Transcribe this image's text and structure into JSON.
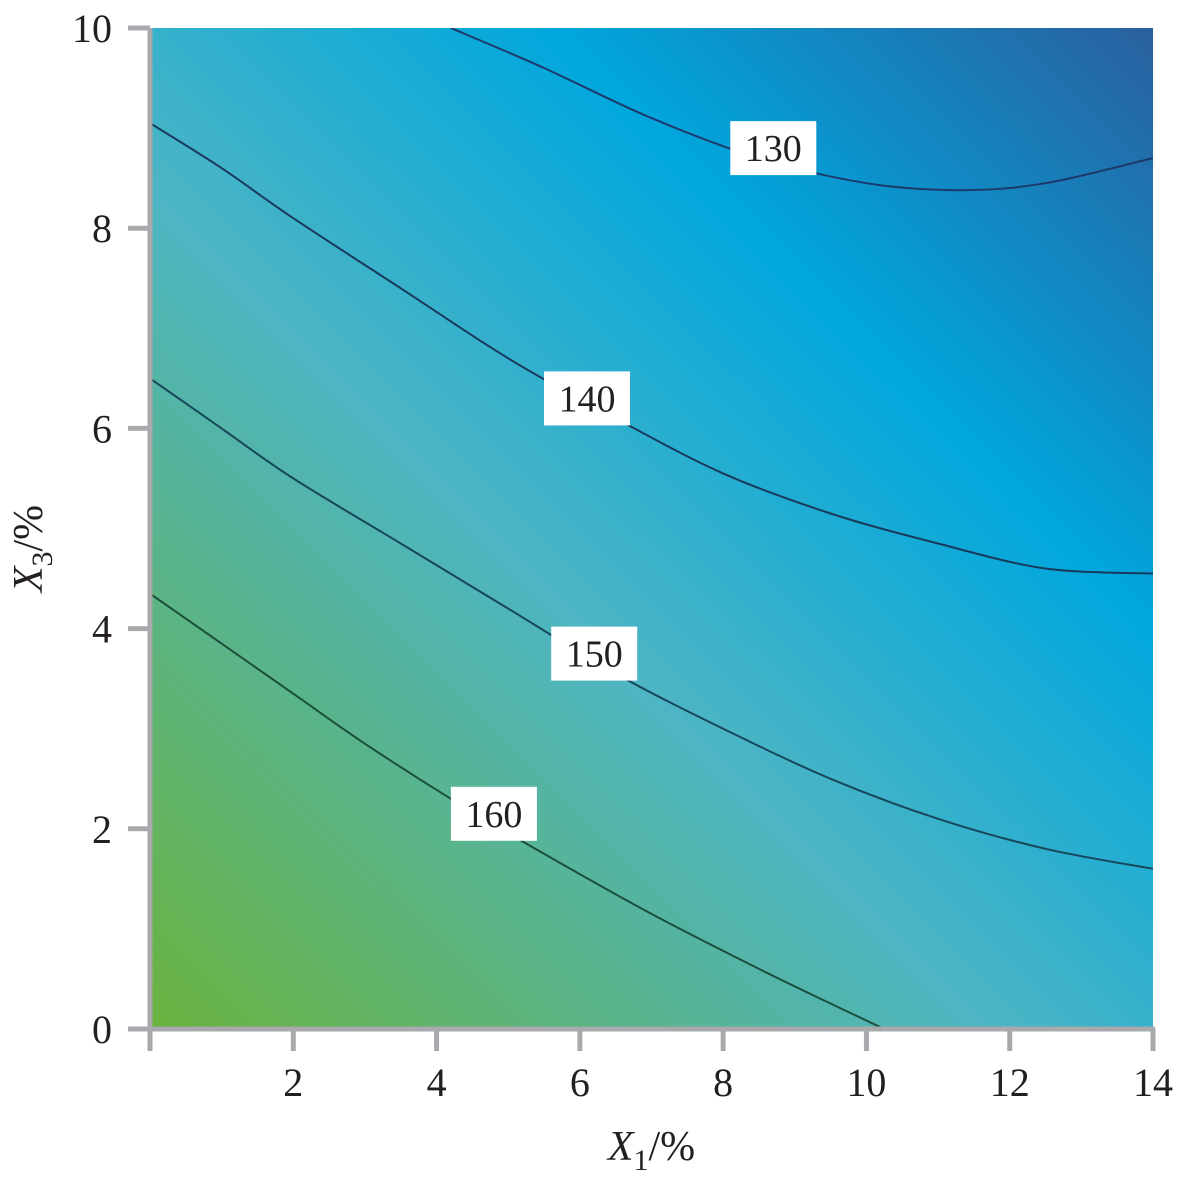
{
  "chart_data": {
    "type": "contour",
    "title": "",
    "xlabel": {
      "var": "X",
      "sub": "1",
      "unit": "/%"
    },
    "ylabel": {
      "var": "X",
      "sub": "3",
      "unit": "/%"
    },
    "xlim": [
      0,
      14
    ],
    "ylim": [
      0,
      10
    ],
    "xticks": [
      0,
      2,
      4,
      6,
      8,
      10,
      12,
      14
    ],
    "xtick_labels": [
      "",
      "2",
      "4",
      "6",
      "8",
      "10",
      "12",
      "14"
    ],
    "yticks": [
      0,
      2,
      4,
      6,
      8,
      10
    ],
    "ytick_labels": [
      "0",
      "2",
      "4",
      "6",
      "8",
      "10"
    ],
    "grid": false,
    "colorscale": {
      "low_color": "#2a5f9e",
      "mid_color": "#00a7dd",
      "middle_color": "#4db5c4",
      "high_color": "#6ab33e"
    },
    "contours": [
      {
        "level": "130",
        "color": "#1c3a6b",
        "label_at": [
          8.7,
          8.8
        ],
        "points": [
          [
            4.2,
            10
          ],
          [
            5.5,
            9.6
          ],
          [
            7.0,
            9.1
          ],
          [
            8.5,
            8.7
          ],
          [
            10.0,
            8.45
          ],
          [
            11.3,
            8.38
          ],
          [
            12.5,
            8.45
          ],
          [
            14,
            8.7
          ]
        ]
      },
      {
        "level": "140",
        "color": "#183a5c",
        "label_at": [
          6.1,
          6.3
        ],
        "points": [
          [
            0,
            9.05
          ],
          [
            1.0,
            8.6
          ],
          [
            2.0,
            8.1
          ],
          [
            3.5,
            7.4
          ],
          [
            5.0,
            6.7
          ],
          [
            6.5,
            6.1
          ],
          [
            8.0,
            5.55
          ],
          [
            9.5,
            5.15
          ],
          [
            11.0,
            4.85
          ],
          [
            12.5,
            4.6
          ],
          [
            14,
            4.55
          ]
        ]
      },
      {
        "level": "150",
        "color": "#17475a",
        "label_at": [
          6.2,
          3.75
        ],
        "points": [
          [
            0,
            6.5
          ],
          [
            1.0,
            6.0
          ],
          [
            2.0,
            5.5
          ],
          [
            3.5,
            4.85
          ],
          [
            5.0,
            4.2
          ],
          [
            6.5,
            3.55
          ],
          [
            8.0,
            3.0
          ],
          [
            9.5,
            2.5
          ],
          [
            11.0,
            2.1
          ],
          [
            12.5,
            1.8
          ],
          [
            14,
            1.6
          ]
        ]
      },
      {
        "level": "160",
        "color": "#1b4f3c",
        "label_at": [
          4.8,
          2.15
        ],
        "points": [
          [
            0,
            4.35
          ],
          [
            1.0,
            3.85
          ],
          [
            2.0,
            3.35
          ],
          [
            3.0,
            2.85
          ],
          [
            4.2,
            2.3
          ],
          [
            5.5,
            1.75
          ],
          [
            7.0,
            1.15
          ],
          [
            8.5,
            0.6
          ],
          [
            9.6,
            0.22
          ],
          [
            10.25,
            0
          ]
        ]
      }
    ]
  }
}
